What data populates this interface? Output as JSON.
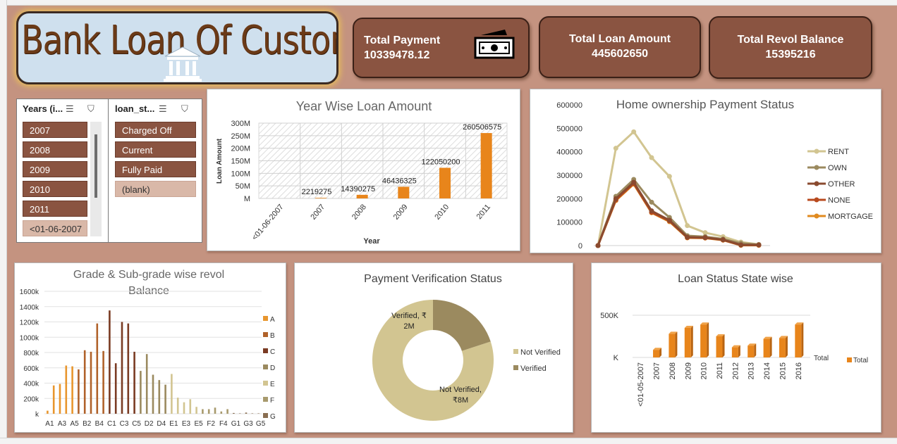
{
  "dashboard": {
    "title": "Bank Loan Of Customers",
    "icon": "bank-icon"
  },
  "kpis": {
    "total_payment_label": "Total Payment",
    "total_payment_value": "10339478.12",
    "total_payment_icon": "money-icon",
    "total_loan_label": "Total Loan Amount",
    "total_loan_value": "445602650",
    "total_revol_label": "Total Revol Balance",
    "total_revol_value": "15395216"
  },
  "slicers": {
    "years": {
      "header": "Years (i...",
      "items": [
        "2007",
        "2008",
        "2009",
        "2010",
        "2011",
        "<01-06-2007"
      ]
    },
    "loan_status": {
      "header": "loan_st...",
      "items": [
        "Charged Off",
        "Current",
        "Fully Paid",
        "(blank)"
      ]
    }
  },
  "colors": {
    "background": "#c49380",
    "card": "#8a5441",
    "bar_orange": "#e8851b",
    "rent": "#d2c591",
    "own": "#9b8a5f",
    "other": "#8a4a2f",
    "none": "#b84a1e",
    "mortgage": "#e08a1f"
  },
  "chart_data": [
    {
      "id": "year-wise",
      "type": "bar",
      "title": "Year Wise Loan Amount",
      "xlabel": "Year",
      "ylabel": "Loan Amount",
      "categories": [
        "<01-06-2007",
        "2007",
        "2008",
        "2009",
        "2010",
        "2011"
      ],
      "values": [
        0,
        2219275,
        14390275,
        46436325,
        122050200,
        260506575
      ],
      "data_labels": [
        "",
        "2219275",
        "14390275",
        "46436325",
        "122050200",
        "260506575"
      ],
      "yticks": [
        "M",
        "50M",
        "100M",
        "150M",
        "200M",
        "250M",
        "300M"
      ],
      "ylim": [
        0,
        300000000
      ]
    },
    {
      "id": "home-ownership",
      "type": "line",
      "title": "Home ownership Payment Status",
      "yticks": [
        "0",
        "100000",
        "200000",
        "300000",
        "400000",
        "500000",
        "600000"
      ],
      "ylim": [
        0,
        600000
      ],
      "legend_position": "right",
      "series": [
        {
          "name": "RENT",
          "values": [
            0,
            415000,
            485000,
            375000,
            295000,
            85000,
            55000,
            38000,
            15000,
            5000
          ]
        },
        {
          "name": "OWN",
          "values": [
            0,
            210000,
            282000,
            185000,
            120000,
            42000,
            38000,
            28000,
            10000,
            4000
          ]
        },
        {
          "name": "OTHER",
          "values": [
            0,
            200000,
            270000,
            148000,
            108000,
            36000,
            34000,
            25000,
            3000,
            3000
          ]
        },
        {
          "name": "NONE",
          "values": [
            0,
            195000,
            265000,
            142000,
            105000,
            34000,
            33000,
            24000,
            2000,
            2000
          ]
        },
        {
          "name": "MORTGAGE",
          "values": [
            0,
            192000,
            262000,
            140000,
            102000,
            33000,
            32000,
            23000,
            1000,
            1000
          ]
        }
      ]
    },
    {
      "id": "grade-revol",
      "type": "bar",
      "title": "Grade & Sub-grade wise revol Balance",
      "title_lines": [
        "Grade & Sub-grade wise revol",
        "Balance"
      ],
      "yticks": [
        "k",
        "200k",
        "400k",
        "600k",
        "800k",
        "1000k",
        "1200k",
        "1400k",
        "1600k"
      ],
      "ylim": [
        0,
        1600000
      ],
      "xtick_labels": [
        "A1",
        "A3",
        "A5",
        "B2",
        "B4",
        "C1",
        "C3",
        "C5",
        "D2",
        "D4",
        "E1",
        "E3",
        "E5",
        "F2",
        "F4",
        "G1",
        "G3",
        "G5"
      ],
      "legend": [
        "A",
        "B",
        "C",
        "D",
        "E",
        "F",
        "G"
      ],
      "series": [
        {
          "name": "A",
          "color": "#e8962e",
          "categories": [
            "A1",
            "A2",
            "A3",
            "A4",
            "A5"
          ],
          "values": [
            40000,
            370000,
            390000,
            630000,
            620000
          ]
        },
        {
          "name": "B",
          "color": "#b0622a",
          "categories": [
            "B1",
            "B2",
            "B3",
            "B4",
            "B5"
          ],
          "values": [
            580000,
            830000,
            810000,
            1180000,
            820000
          ]
        },
        {
          "name": "C",
          "color": "#7a3b23",
          "categories": [
            "C1",
            "C2",
            "C3",
            "C4",
            "C5"
          ],
          "values": [
            1350000,
            660000,
            1200000,
            1180000,
            810000
          ]
        },
        {
          "name": "D",
          "color": "#9b8a5f",
          "categories": [
            "D1",
            "D2",
            "D3",
            "D4",
            "D5"
          ],
          "values": [
            560000,
            780000,
            510000,
            440000,
            380000
          ]
        },
        {
          "name": "E",
          "color": "#d2c591",
          "categories": [
            "E1",
            "E2",
            "E3",
            "E4",
            "E5"
          ],
          "values": [
            520000,
            210000,
            150000,
            190000,
            90000
          ]
        },
        {
          "name": "F",
          "color": "#a89a6d",
          "categories": [
            "F1",
            "F2",
            "F3",
            "F4",
            "F5"
          ],
          "values": [
            60000,
            60000,
            80000,
            30000,
            60000
          ]
        },
        {
          "name": "G",
          "color": "#8a6e52",
          "categories": [
            "G1",
            "G2",
            "G3",
            "G4",
            "G5"
          ],
          "values": [
            10000,
            5000,
            15000,
            5000,
            5000
          ]
        }
      ]
    },
    {
      "id": "verification",
      "type": "pie",
      "title": "Payment Verification Status",
      "slices": [
        {
          "label": "Not Verified",
          "value": 8,
          "data_label_lines": [
            "Not Verified,",
            "₹8M"
          ]
        },
        {
          "label": "Verified",
          "value": 2,
          "data_label_lines": [
            "Verified, ₹",
            "2M"
          ]
        }
      ],
      "legend": [
        "Not Verified",
        "Verified"
      ]
    },
    {
      "id": "state-wise",
      "type": "bar",
      "title": "Loan Status State wise",
      "categories": [
        "<01-05-2007",
        "2007",
        "2008",
        "2009",
        "2010",
        "2011",
        "2012",
        "2013",
        "2014",
        "2015",
        "2016"
      ],
      "values": [
        0,
        90000,
        280000,
        350000,
        390000,
        250000,
        120000,
        140000,
        220000,
        230000,
        390000
      ],
      "yticks": [
        "K",
        "500K"
      ],
      "ylim": [
        0,
        500000
      ],
      "series_label": "Total",
      "legend": [
        "Total"
      ]
    }
  ]
}
